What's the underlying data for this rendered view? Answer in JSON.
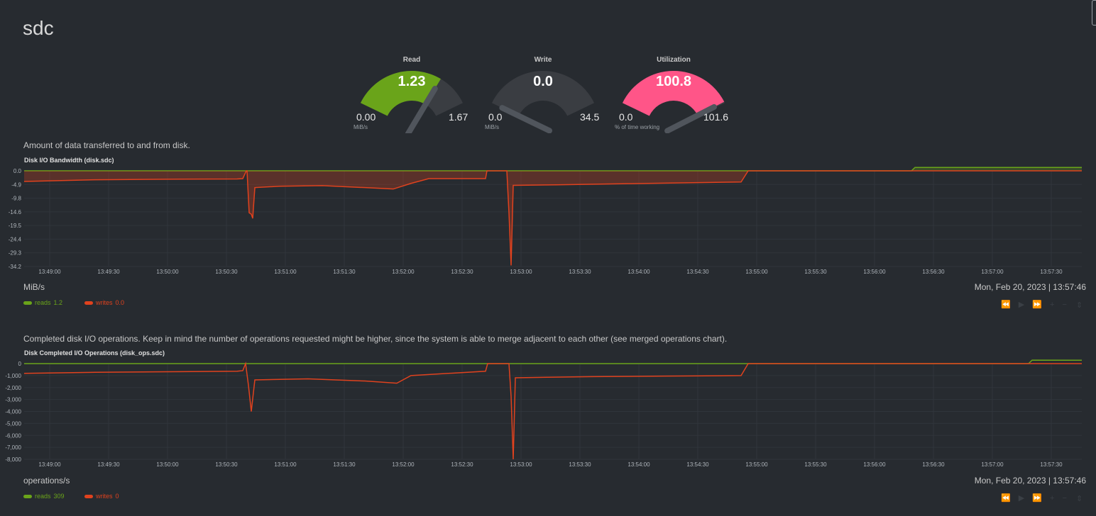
{
  "page": {
    "title": "sdc"
  },
  "colors": {
    "background": "#272b30",
    "read": "#6aa41a",
    "write": "#e0421e",
    "util": "#ff5588",
    "gauge_bg": "#3a3d42",
    "needle": "#50555c"
  },
  "gauges": [
    {
      "label": "Read",
      "value": "1.23",
      "min": "0.00",
      "max": "1.67",
      "unit": "MiB/s",
      "fraction": 0.74,
      "color": "#6aa41a"
    },
    {
      "label": "Write",
      "value": "0.0",
      "min": "0.0",
      "max": "34.5",
      "unit": "MiB/s",
      "fraction": 0.0,
      "color": "#6aa41a"
    },
    {
      "label": "Utilization",
      "value": "100.8",
      "min": "0.0",
      "max": "101.6",
      "unit": "% of time working",
      "fraction": 0.99,
      "color": "#ff5588"
    }
  ],
  "bandwidth": {
    "description": "Amount of data transferred to and from disk.",
    "title": "Disk I/O Bandwidth (disk.sdc)",
    "unit": "MiB/s",
    "date": "Mon, Feb 20, 2023 | 13:57:46",
    "legend": [
      {
        "name": "reads",
        "value": "1.2",
        "color": "#6aa41a"
      },
      {
        "name": "writes",
        "value": "0.0",
        "color": "#e0421e"
      }
    ]
  },
  "ops": {
    "description": "Completed disk I/O operations. Keep in mind the number of operations requested might be higher, since the system is able to merge adjacent to each other (see merged operations chart).",
    "title": "Disk Completed I/O Operations (disk_ops.sdc)",
    "unit": "operations/s",
    "date": "Mon, Feb 20, 2023 | 13:57:46",
    "legend": [
      {
        "name": "reads",
        "value": "309",
        "color": "#6aa41a"
      },
      {
        "name": "writes",
        "value": "0",
        "color": "#e0421e"
      }
    ]
  },
  "controls": {
    "glyphs": "⏪ ▶ ⏩ + −",
    "resize": "⇕"
  },
  "chart_data": [
    {
      "type": "area",
      "title": "Disk I/O Bandwidth (disk.sdc)",
      "ylabel": "MiB/s",
      "y_ticks": [
        "0.0",
        "-4.9",
        "-9.8",
        "-14.6",
        "-19.5",
        "-24.4",
        "-29.3",
        "-34.2"
      ],
      "ylim": [
        -34.2,
        0
      ],
      "x_ticks": [
        "13:49:00",
        "13:49:30",
        "13:50:00",
        "13:50:30",
        "13:51:00",
        "13:51:30",
        "13:52:00",
        "13:52:30",
        "13:53:00",
        "13:53:30",
        "13:54:00",
        "13:54:30",
        "13:55:00",
        "13:55:30",
        "13:56:00",
        "13:56:30",
        "13:57:00",
        "13:57:30"
      ],
      "series": [
        {
          "name": "reads",
          "color": "#6aa41a",
          "points": [
            [
              0,
              0
            ],
            [
              1250,
              0
            ],
            [
              1255,
              1.2
            ],
            [
              1330,
              1.2
            ],
            [
              1380,
              1.2
            ],
            [
              1490,
              1.2
            ]
          ]
        },
        {
          "name": "writes",
          "color": "#e0421e",
          "points": [
            [
              0,
              -3.8
            ],
            [
              100,
              -3.2
            ],
            [
              200,
              -3.0
            ],
            [
              300,
              -2.9
            ],
            [
              308,
              -2.8
            ],
            [
              313,
              0
            ],
            [
              314,
              0
            ],
            [
              317,
              -15
            ],
            [
              320,
              -15.5
            ],
            [
              322,
              -17
            ],
            [
              325,
              -6.0
            ],
            [
              360,
              -5.5
            ],
            [
              420,
              -5.3
            ],
            [
              480,
              -6.0
            ],
            [
              520,
              -6.5
            ],
            [
              545,
              -4.5
            ],
            [
              570,
              -2.8
            ],
            [
              650,
              -2.8
            ],
            [
              652,
              0
            ],
            [
              680,
              0
            ],
            [
              683,
              -15
            ],
            [
              686,
              -33.8
            ],
            [
              689,
              -5.2
            ],
            [
              750,
              -5.0
            ],
            [
              850,
              -4.6
            ],
            [
              950,
              -4.2
            ],
            [
              1010,
              -4.0
            ],
            [
              1020,
              0
            ],
            [
              1490,
              0
            ]
          ]
        }
      ]
    },
    {
      "type": "line",
      "title": "Disk Completed I/O Operations (disk_ops.sdc)",
      "ylabel": "operations/s",
      "y_ticks": [
        "0",
        "-1,000",
        "-2,000",
        "-3,000",
        "-4,000",
        "-5,000",
        "-6,000",
        "-7,000",
        "-8,000"
      ],
      "ylim": [
        -8800,
        0
      ],
      "x_ticks": [
        "13:49:00",
        "13:49:30",
        "13:50:00",
        "13:50:30",
        "13:51:00",
        "13:51:30",
        "13:52:00",
        "13:52:30",
        "13:53:00",
        "13:53:30",
        "13:54:00",
        "13:54:30",
        "13:55:00",
        "13:55:30",
        "13:56:00",
        "13:56:30",
        "13:57:00",
        "13:57:30"
      ],
      "series": [
        {
          "name": "reads",
          "color": "#6aa41a",
          "points": [
            [
              0,
              0
            ],
            [
              1415,
              0
            ],
            [
              1420,
              320
            ],
            [
              1490,
              309
            ]
          ]
        },
        {
          "name": "writes",
          "color": "#e0421e",
          "points": [
            [
              0,
              -900
            ],
            [
              100,
              -800
            ],
            [
              200,
              -750
            ],
            [
              300,
              -700
            ],
            [
              308,
              -650
            ],
            [
              312,
              0
            ],
            [
              316,
              -2000
            ],
            [
              320,
              -4400
            ],
            [
              325,
              -1500
            ],
            [
              400,
              -1400
            ],
            [
              480,
              -1600
            ],
            [
              525,
              -1800
            ],
            [
              545,
              -1100
            ],
            [
              650,
              -700
            ],
            [
              653,
              0
            ],
            [
              683,
              0
            ],
            [
              686,
              -3000
            ],
            [
              689,
              -8800
            ],
            [
              692,
              -1300
            ],
            [
              800,
              -1200
            ],
            [
              900,
              -1150
            ],
            [
              1010,
              -1100
            ],
            [
              1020,
              0
            ],
            [
              1490,
              0
            ]
          ]
        }
      ]
    }
  ]
}
